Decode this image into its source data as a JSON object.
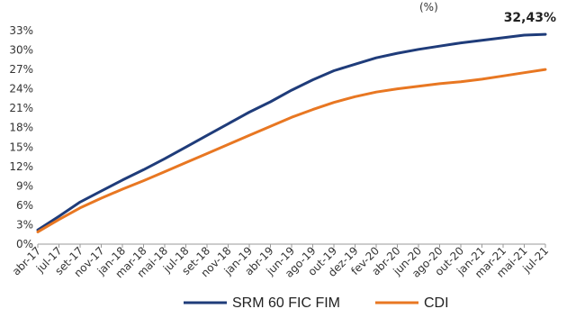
{
  "chart_data": {
    "type": "line",
    "title_fragment": "(%)",
    "y_ticks": [
      "0%",
      "3%",
      "6%",
      "9%",
      "12%",
      "15%",
      "18%",
      "21%",
      "24%",
      "27%",
      "30%",
      "33%"
    ],
    "ylim": [
      0,
      33
    ],
    "x_ticks": [
      "abr-17",
      "jul-17",
      "set-17",
      "nov-17",
      "jan-18",
      "mar-18",
      "mai-18",
      "jul-18",
      "set-18",
      "nov-18",
      "jan-19",
      "abr-19",
      "jun-19",
      "ago-19",
      "out-19",
      "dez-19",
      "fev-20",
      "abr-20",
      "jun-20",
      "ago-20",
      "out-20",
      "jan-21",
      "mar-21",
      "mai-21",
      "jul-21"
    ],
    "last_value_label": "32,43%",
    "grid": false,
    "legend_position": "bottom",
    "series": [
      {
        "name": "SRM 60 FIC FIM",
        "color": "#1f3c7a",
        "points": [
          [
            "abr-17",
            2.2
          ],
          [
            "jul-17",
            4.3
          ],
          [
            "set-17",
            6.5
          ],
          [
            "nov-17",
            8.2
          ],
          [
            "jan-18",
            9.9
          ],
          [
            "mar-18",
            11.5
          ],
          [
            "mai-18",
            13.2
          ],
          [
            "jul-18",
            15.0
          ],
          [
            "set-18",
            16.8
          ],
          [
            "nov-18",
            18.6
          ],
          [
            "jan-19",
            20.4
          ],
          [
            "abr-19",
            22.0
          ],
          [
            "jun-19",
            23.8
          ],
          [
            "ago-19",
            25.4
          ],
          [
            "out-19",
            26.8
          ],
          [
            "dez-19",
            27.8
          ],
          [
            "fev-20",
            28.8
          ],
          [
            "abr-20",
            29.5
          ],
          [
            "jun-20",
            30.1
          ],
          [
            "ago-20",
            30.6
          ],
          [
            "out-20",
            31.1
          ],
          [
            "jan-21",
            31.5
          ],
          [
            "mar-21",
            31.9
          ],
          [
            "mai-21",
            32.3
          ],
          [
            "jul-21",
            32.43
          ]
        ]
      },
      {
        "name": "CDI",
        "color": "#e87722",
        "points": [
          [
            "abr-17",
            1.9
          ],
          [
            "jul-17",
            3.8
          ],
          [
            "set-17",
            5.6
          ],
          [
            "nov-17",
            7.1
          ],
          [
            "jan-18",
            8.5
          ],
          [
            "mar-18",
            9.8
          ],
          [
            "mai-18",
            11.2
          ],
          [
            "jul-18",
            12.6
          ],
          [
            "set-18",
            14.0
          ],
          [
            "nov-18",
            15.4
          ],
          [
            "jan-19",
            16.8
          ],
          [
            "abr-19",
            18.2
          ],
          [
            "jun-19",
            19.6
          ],
          [
            "ago-19",
            20.8
          ],
          [
            "out-19",
            21.9
          ],
          [
            "dez-19",
            22.8
          ],
          [
            "fev-20",
            23.5
          ],
          [
            "abr-20",
            24.0
          ],
          [
            "jun-20",
            24.4
          ],
          [
            "ago-20",
            24.8
          ],
          [
            "out-20",
            25.1
          ],
          [
            "jan-21",
            25.5
          ],
          [
            "mar-21",
            26.0
          ],
          [
            "mai-21",
            26.5
          ],
          [
            "jul-21",
            27.0
          ]
        ]
      }
    ]
  }
}
